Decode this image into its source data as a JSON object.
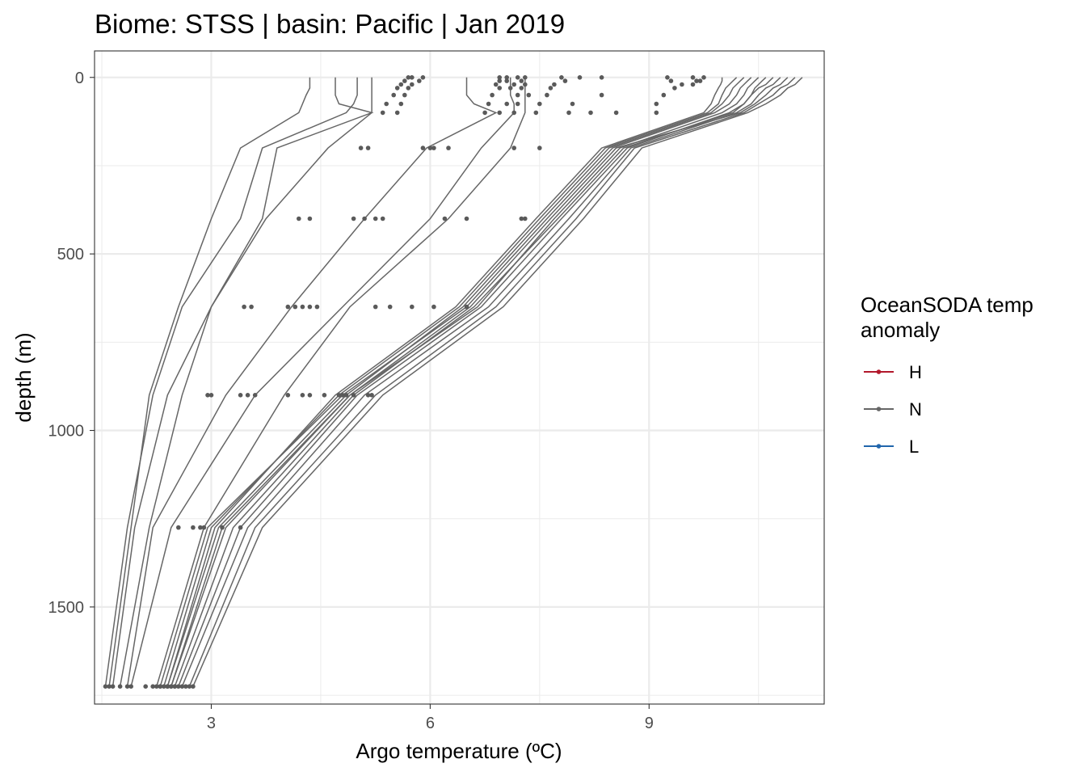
{
  "chart_data": {
    "type": "line",
    "title": "Biome: STSS | basin: Pacific  | Jan 2019",
    "xlabel": "Argo temperature (ºC)",
    "ylabel": "depth (m)",
    "xlim": [
      1.4,
      11.4
    ],
    "ylim": [
      1775,
      -75
    ],
    "y_reversed": true,
    "x_ticks": [
      3,
      6,
      9
    ],
    "y_ticks": [
      0,
      500,
      1000,
      1500
    ],
    "grid": true,
    "legend": {
      "title_lines": [
        "OceanSODA temp",
        "anomaly"
      ],
      "placement": "right",
      "entries": [
        {
          "label": "H",
          "color": "#b2182b"
        },
        {
          "label": "N",
          "color": "#666666"
        },
        {
          "label": "L",
          "color": "#2166ac"
        }
      ]
    },
    "depth_levels": [
      0,
      10,
      20,
      30,
      50,
      75,
      100,
      200,
      400,
      650,
      900,
      1275,
      1725
    ],
    "series": [
      {
        "anomaly": "N",
        "temperature": [
          5.0,
          5.0,
          5.0,
          5.0,
          5.0,
          4.95,
          4.85,
          3.7,
          3.4,
          2.6,
          2.2,
          1.85,
          1.55
        ]
      },
      {
        "anomaly": "N",
        "temperature": [
          5.2,
          5.2,
          5.2,
          5.2,
          5.2,
          5.2,
          5.2,
          4.6,
          3.75,
          3.0,
          2.4,
          1.95,
          1.65
        ]
      },
      {
        "anomaly": "N",
        "temperature": [
          4.35,
          4.35,
          4.35,
          4.35,
          4.3,
          4.25,
          4.2,
          3.4,
          3.0,
          2.55,
          2.15,
          1.9,
          1.6
        ]
      },
      {
        "anomaly": "N",
        "temperature": [
          4.7,
          4.7,
          4.7,
          4.7,
          4.7,
          4.75,
          5.2,
          3.9,
          3.7,
          3.0,
          2.6,
          2.15,
          1.75
        ]
      },
      {
        "anomaly": "N",
        "temperature": [
          6.5,
          6.5,
          6.5,
          6.5,
          6.5,
          6.6,
          6.9,
          5.95,
          5.1,
          4.1,
          3.2,
          2.2,
          1.85
        ]
      },
      {
        "anomaly": "N",
        "temperature": [
          7.1,
          7.1,
          7.1,
          7.1,
          7.1,
          7.15,
          7.15,
          6.7,
          6.0,
          4.8,
          3.6,
          2.45,
          1.9
        ]
      },
      {
        "anomaly": "N",
        "temperature": [
          7.3,
          7.3,
          7.3,
          7.3,
          7.3,
          7.3,
          7.3,
          7.1,
          6.25,
          4.9,
          4.0,
          2.9,
          2.25
        ]
      },
      {
        "anomaly": "N",
        "temperature": [
          10.4,
          10.35,
          10.3,
          10.25,
          10.2,
          10.1,
          9.9,
          8.5,
          7.6,
          6.5,
          4.8,
          2.95,
          2.3
        ]
      },
      {
        "anomaly": "N",
        "temperature": [
          10.5,
          10.45,
          10.4,
          10.35,
          10.3,
          10.2,
          10.0,
          8.6,
          7.7,
          6.65,
          4.9,
          3.2,
          2.45
        ]
      },
      {
        "anomaly": "N",
        "temperature": [
          10.6,
          10.55,
          10.5,
          10.45,
          10.4,
          10.3,
          10.1,
          8.7,
          7.8,
          6.7,
          5.0,
          3.4,
          2.55
        ]
      },
      {
        "anomaly": "N",
        "temperature": [
          10.8,
          10.75,
          10.7,
          10.6,
          10.5,
          10.4,
          10.2,
          8.75,
          7.9,
          6.8,
          5.1,
          3.5,
          2.6
        ]
      },
      {
        "anomaly": "N",
        "temperature": [
          11.0,
          10.95,
          10.9,
          10.8,
          10.7,
          10.5,
          10.3,
          8.8,
          8.0,
          6.9,
          5.25,
          3.6,
          2.7
        ]
      },
      {
        "anomaly": "N",
        "temperature": [
          11.1,
          11.05,
          11.0,
          10.9,
          10.8,
          10.6,
          10.35,
          8.9,
          8.1,
          7.0,
          5.35,
          3.7,
          2.75
        ]
      },
      {
        "anomaly": "N",
        "temperature": [
          10.2,
          10.15,
          10.1,
          10.05,
          10.0,
          9.95,
          9.8,
          8.4,
          7.5,
          6.4,
          4.75,
          3.0,
          2.35
        ]
      },
      {
        "anomaly": "N",
        "temperature": [
          10.0,
          10.0,
          9.98,
          9.95,
          9.9,
          9.85,
          9.75,
          8.35,
          7.45,
          6.35,
          4.7,
          3.05,
          2.4
        ]
      },
      {
        "anomaly": "N",
        "temperature": [
          10.3,
          10.25,
          10.2,
          10.15,
          10.1,
          10.0,
          9.85,
          8.45,
          7.55,
          6.45,
          4.85,
          3.1,
          2.4
        ]
      },
      {
        "anomaly": "N",
        "temperature": [
          10.9,
          10.85,
          10.8,
          10.7,
          10.6,
          10.45,
          10.25,
          8.55,
          7.65,
          6.55,
          4.9,
          3.15,
          2.45
        ]
      },
      {
        "anomaly": "N",
        "temperature": [
          10.7,
          10.65,
          10.6,
          10.5,
          10.4,
          10.3,
          10.15,
          8.65,
          7.75,
          6.6,
          4.95,
          3.3,
          2.5
        ]
      }
    ],
    "points": [
      {
        "depth": 0,
        "temperature": [
          5.7,
          5.75,
          5.9,
          6.95,
          7.05,
          7.2,
          7.3,
          7.8,
          8.05,
          8.35,
          9.25,
          9.6,
          9.75
        ]
      },
      {
        "depth": 10,
        "temperature": [
          5.65,
          5.85,
          6.95,
          7.05,
          7.25,
          7.85,
          9.3,
          9.65,
          9.7
        ]
      },
      {
        "depth": 20,
        "temperature": [
          5.6,
          5.75,
          6.9,
          7.15,
          7.3,
          7.7,
          9.45,
          9.6
        ]
      },
      {
        "depth": 30,
        "temperature": [
          5.55,
          5.7,
          6.95,
          7.1,
          7.25,
          7.65,
          9.35
        ]
      },
      {
        "depth": 50,
        "temperature": [
          5.5,
          5.65,
          6.85,
          7.2,
          7.35,
          7.6,
          8.35,
          9.2
        ]
      },
      {
        "depth": 75,
        "temperature": [
          5.4,
          5.6,
          6.8,
          7.05,
          7.2,
          7.5,
          7.95,
          9.1
        ]
      },
      {
        "depth": 100,
        "temperature": [
          5.35,
          5.55,
          6.75,
          6.95,
          7.15,
          7.45,
          7.9,
          8.2,
          8.55,
          9.1
        ]
      },
      {
        "depth": 200,
        "temperature": [
          5.05,
          5.15,
          5.9,
          6.0,
          6.05,
          6.25,
          7.15,
          7.5
        ]
      },
      {
        "depth": 400,
        "temperature": [
          4.2,
          4.35,
          4.95,
          5.1,
          5.25,
          5.35,
          6.2,
          6.5,
          7.25,
          7.3
        ]
      },
      {
        "depth": 650,
        "temperature": [
          3.45,
          3.55,
          4.05,
          4.15,
          4.25,
          4.35,
          4.45,
          5.25,
          5.45,
          5.75,
          6.05,
          6.5
        ]
      },
      {
        "depth": 900,
        "temperature": [
          2.95,
          3.0,
          3.4,
          3.5,
          3.6,
          4.05,
          4.25,
          4.35,
          4.55,
          4.75,
          4.8,
          4.85,
          4.95,
          5.15,
          5.2
        ]
      },
      {
        "depth": 1275,
        "temperature": [
          2.55,
          2.75,
          2.85,
          2.9,
          3.15,
          3.4
        ]
      },
      {
        "depth": 1725,
        "temperature": [
          2.1,
          2.2,
          2.3,
          2.4,
          2.5,
          2.65
        ]
      }
    ]
  }
}
